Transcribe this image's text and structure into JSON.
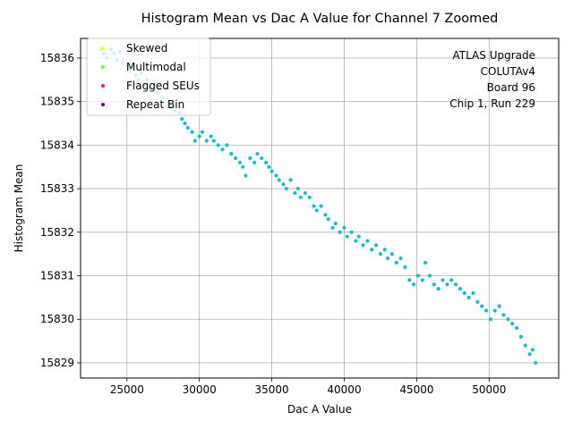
{
  "chart_data": {
    "type": "scatter",
    "title": "Histogram Mean vs Dac A Value for Channel 7 Zoomed",
    "xlabel": "Dac A Value",
    "ylabel": "Histogram Mean",
    "xlim": [
      21800,
      54800
    ],
    "ylim": [
      15828.65,
      15836.45
    ],
    "xticks": [
      25000,
      30000,
      35000,
      40000,
      45000,
      50000
    ],
    "xtick_labels": [
      "25000",
      "30000",
      "35000",
      "40000",
      "45000",
      "50000"
    ],
    "yticks": [
      15829,
      15830,
      15831,
      15832,
      15833,
      15834,
      15835,
      15836
    ],
    "ytick_labels": [
      "15829",
      "15830",
      "15831",
      "15832",
      "15833",
      "15834",
      "15835",
      "15836"
    ],
    "grid": true,
    "legend": {
      "position": "top-left",
      "entries": [
        {
          "label": "Skewed",
          "color": "#ffff00"
        },
        {
          "label": "Multimodal",
          "color": "#7fff00"
        },
        {
          "label": "Flagged SEUs",
          "color": "#e0303a"
        },
        {
          "label": "Repeat Bin",
          "color": "#800080"
        }
      ]
    },
    "annotation": [
      "ATLAS Upgrade",
      "COLUTAv4",
      "Board 96",
      "Chip 1, Run 229"
    ],
    "series": [
      {
        "name": "",
        "color": "#17becf",
        "points": [
          [
            23200,
            15836.2
          ],
          [
            23400,
            15836.1
          ],
          [
            23600,
            15836.0
          ],
          [
            23900,
            15836.2
          ],
          [
            24100,
            15836.1
          ],
          [
            24300,
            15835.95
          ],
          [
            24500,
            15836.15
          ],
          [
            24700,
            15835.9
          ],
          [
            25000,
            15835.85
          ],
          [
            25200,
            15835.7
          ],
          [
            25400,
            15835.8
          ],
          [
            25600,
            15835.6
          ],
          [
            25800,
            15835.5
          ],
          [
            26000,
            15835.65
          ],
          [
            26200,
            15835.4
          ],
          [
            26400,
            15835.5
          ],
          [
            26600,
            15835.3
          ],
          [
            26800,
            15835.45
          ],
          [
            27000,
            15835.2
          ],
          [
            27300,
            15835.3
          ],
          [
            27500,
            15835.1
          ],
          [
            27800,
            15835.0
          ],
          [
            28000,
            15834.9
          ],
          [
            28300,
            15834.8
          ],
          [
            28600,
            15834.75
          ],
          [
            28800,
            15834.6
          ],
          [
            29000,
            15834.5
          ],
          [
            29200,
            15834.4
          ],
          [
            29500,
            15834.3
          ],
          [
            29700,
            15834.1
          ],
          [
            30000,
            15834.2
          ],
          [
            30200,
            15834.3
          ],
          [
            30500,
            15834.1
          ],
          [
            30800,
            15834.2
          ],
          [
            31000,
            15834.1
          ],
          [
            31300,
            15834.0
          ],
          [
            31600,
            15833.9
          ],
          [
            31900,
            15834.0
          ],
          [
            32200,
            15833.8
          ],
          [
            32500,
            15833.7
          ],
          [
            32800,
            15833.6
          ],
          [
            33000,
            15833.5
          ],
          [
            33200,
            15833.3
          ],
          [
            33500,
            15833.7
          ],
          [
            33800,
            15833.6
          ],
          [
            34000,
            15833.8
          ],
          [
            34300,
            15833.7
          ],
          [
            34600,
            15833.6
          ],
          [
            34800,
            15833.5
          ],
          [
            35000,
            15833.4
          ],
          [
            35300,
            15833.3
          ],
          [
            35500,
            15833.2
          ],
          [
            35800,
            15833.1
          ],
          [
            36000,
            15833.0
          ],
          [
            36300,
            15833.2
          ],
          [
            36600,
            15832.9
          ],
          [
            36800,
            15833.0
          ],
          [
            37000,
            15832.8
          ],
          [
            37300,
            15832.9
          ],
          [
            37600,
            15832.8
          ],
          [
            37900,
            15832.6
          ],
          [
            38100,
            15832.5
          ],
          [
            38400,
            15832.6
          ],
          [
            38700,
            15832.4
          ],
          [
            38900,
            15832.3
          ],
          [
            39200,
            15832.1
          ],
          [
            39400,
            15832.2
          ],
          [
            39700,
            15832.0
          ],
          [
            40000,
            15832.1
          ],
          [
            40200,
            15831.9
          ],
          [
            40500,
            15832.0
          ],
          [
            40800,
            15831.8
          ],
          [
            41000,
            15831.9
          ],
          [
            41300,
            15831.7
          ],
          [
            41600,
            15831.8
          ],
          [
            41900,
            15831.6
          ],
          [
            42200,
            15831.7
          ],
          [
            42500,
            15831.5
          ],
          [
            42800,
            15831.6
          ],
          [
            43000,
            15831.4
          ],
          [
            43300,
            15831.5
          ],
          [
            43600,
            15831.3
          ],
          [
            43900,
            15831.4
          ],
          [
            44200,
            15831.2
          ],
          [
            44500,
            15830.9
          ],
          [
            44800,
            15830.8
          ],
          [
            45100,
            15831.0
          ],
          [
            45400,
            15830.9
          ],
          [
            45600,
            15831.3
          ],
          [
            45900,
            15831.0
          ],
          [
            46200,
            15830.8
          ],
          [
            46500,
            15830.7
          ],
          [
            46800,
            15830.9
          ],
          [
            47100,
            15830.8
          ],
          [
            47400,
            15830.9
          ],
          [
            47700,
            15830.8
          ],
          [
            48000,
            15830.7
          ],
          [
            48300,
            15830.6
          ],
          [
            48600,
            15830.5
          ],
          [
            48900,
            15830.6
          ],
          [
            49200,
            15830.4
          ],
          [
            49500,
            15830.3
          ],
          [
            49800,
            15830.2
          ],
          [
            50100,
            15830.0
          ],
          [
            50400,
            15830.2
          ],
          [
            50700,
            15830.3
          ],
          [
            51000,
            15830.1
          ],
          [
            51300,
            15830.0
          ],
          [
            51600,
            15829.9
          ],
          [
            51900,
            15829.8
          ],
          [
            52200,
            15829.6
          ],
          [
            52500,
            15829.4
          ],
          [
            52800,
            15829.2
          ],
          [
            53000,
            15829.3
          ],
          [
            53200,
            15829.0
          ]
        ]
      }
    ]
  }
}
